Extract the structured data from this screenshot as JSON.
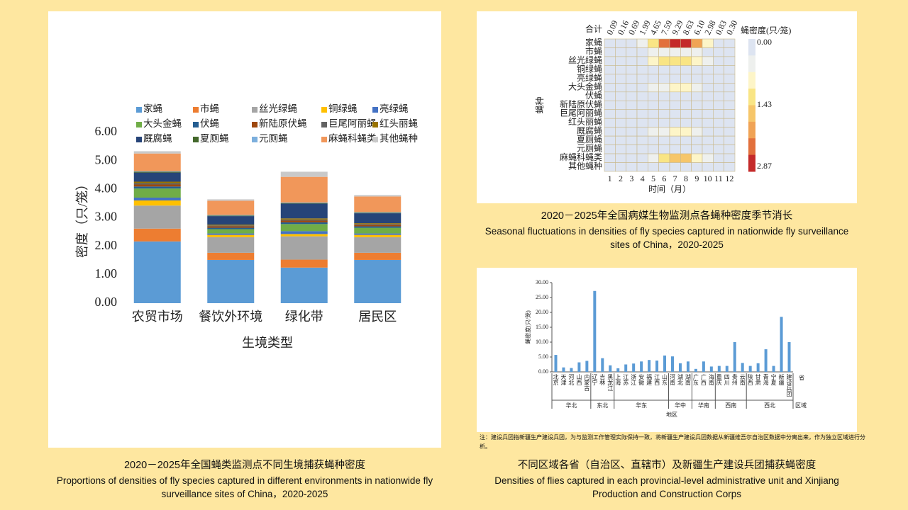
{
  "chart_data": [
    {
      "type": "bar",
      "stacked": true,
      "caption": {
        "zh": "2020－2025年全国蝇类监测点不同生境捕获蝇种密度",
        "en": "Proportions of densities of fly species captured in different environments in nationwide fly surveillance sites of China，2020-2025"
      },
      "xlabel": "生境类型",
      "ylabel": "密度（只/笼）",
      "categories": [
        "农贸市场",
        "餐饮外环境",
        "绿化带",
        "居民区"
      ],
      "ylim": [
        0,
        6
      ],
      "yticks": [
        {
          "value": 0,
          "label": "0.00"
        },
        {
          "value": 1,
          "label": "1.00"
        },
        {
          "value": 2,
          "label": "2.00"
        },
        {
          "value": 3,
          "label": "3.00"
        },
        {
          "value": 4,
          "label": "4.00"
        },
        {
          "value": 5,
          "label": "5.00"
        },
        {
          "value": 6,
          "label": "6.00"
        }
      ],
      "series": [
        {
          "name": "家蝇",
          "color": "#5b9bd5",
          "values": [
            2.17,
            1.52,
            1.25,
            1.52
          ]
        },
        {
          "name": "市蝇",
          "color": "#ed7d31",
          "values": [
            0.45,
            0.25,
            0.28,
            0.25
          ]
        },
        {
          "name": "丝光绿蝇",
          "color": "#a5a5a5",
          "values": [
            0.81,
            0.55,
            0.82,
            0.55
          ]
        },
        {
          "name": "铜绿蝇",
          "color": "#ffc000",
          "values": [
            0.18,
            0.08,
            0.08,
            0.08
          ]
        },
        {
          "name": "亮绿蝇",
          "color": "#4472c4",
          "values": [
            0.1,
            0.05,
            0.1,
            0.05
          ]
        },
        {
          "name": "大头金蝇",
          "color": "#70ad47",
          "values": [
            0.32,
            0.15,
            0.25,
            0.2
          ]
        },
        {
          "name": "伏蝇",
          "color": "#255e91",
          "values": [
            0.07,
            0.05,
            0.06,
            0.05
          ]
        },
        {
          "name": "新陆原伏蝇",
          "color": "#9e480e",
          "values": [
            0.07,
            0.05,
            0.06,
            0.05
          ]
        },
        {
          "name": "巨尾阿丽蝇",
          "color": "#636363",
          "values": [
            0.05,
            0.03,
            0.04,
            0.03
          ]
        },
        {
          "name": "红头丽蝇",
          "color": "#997300",
          "values": [
            0.05,
            0.03,
            0.04,
            0.03
          ]
        },
        {
          "name": "厩腐蝇",
          "color": "#264478",
          "values": [
            0.32,
            0.3,
            0.52,
            0.35
          ]
        },
        {
          "name": "夏厕蝇",
          "color": "#43682b",
          "values": [
            0.03,
            0.02,
            0.02,
            0.02
          ]
        },
        {
          "name": "元厕蝇",
          "color": "#7cafdd",
          "values": [
            0.02,
            0.02,
            0.02,
            0.02
          ]
        },
        {
          "name": "麻蝇科蝇类",
          "color": "#f1975a",
          "values": [
            0.62,
            0.5,
            0.9,
            0.55
          ]
        },
        {
          "name": "其他蝇种",
          "color": "#c9c9c9",
          "values": [
            0.08,
            0.05,
            0.18,
            0.05
          ]
        }
      ]
    },
    {
      "type": "heatmap",
      "caption": {
        "zh": "2020－2025年全国病媒生物监测点各蝇种密度季节消长",
        "en": "Seasonal fluctuations in densities of fly species captured  in nationwide fly surveillance sites of China，2020-2025"
      },
      "xlabel": "时间（月）",
      "ylabel": "蝇种",
      "colorbar_title": "蝇密度(只/笼)",
      "totals_title": "合计",
      "columns": [
        1,
        2,
        3,
        4,
        5,
        6,
        7,
        8,
        9,
        10,
        11,
        12
      ],
      "totals": [
        0.09,
        0.16,
        0.69,
        1.99,
        4.65,
        7.59,
        9.29,
        8.63,
        6.1,
        2.98,
        0.83,
        0.3
      ],
      "totals_labels": [
        "0.09",
        "0.16",
        "0.69",
        "1.99",
        "4.65",
        "7.59",
        "9.29",
        "8.63",
        "6.10",
        "2.98",
        "0.83",
        "0.30"
      ],
      "rows": [
        "家蝇",
        "市蝇",
        "丝光绿蝇",
        "铜绿蝇",
        "亮绿蝇",
        "大头金蝇",
        "伏蝇",
        "新陆原伏蝇",
        "巨尾阿丽蝇",
        "红头丽蝇",
        "厩腐蝇",
        "夏厕蝇",
        "元厕蝇",
        "麻蝇科蝇类",
        "其他蝇种"
      ],
      "values": [
        [
          0.02,
          0.04,
          0.2,
          0.6,
          1.4,
          2.4,
          2.87,
          2.7,
          1.9,
          0.8,
          0.2,
          0.06
        ],
        [
          0.01,
          0.02,
          0.05,
          0.15,
          0.4,
          0.6,
          0.7,
          0.65,
          0.5,
          0.25,
          0.06,
          0.02
        ],
        [
          0.01,
          0.02,
          0.1,
          0.3,
          0.8,
          1.1,
          1.3,
          1.2,
          0.9,
          0.4,
          0.1,
          0.03
        ],
        [
          0,
          0,
          0.02,
          0.05,
          0.15,
          0.25,
          0.3,
          0.28,
          0.2,
          0.08,
          0.02,
          0
        ],
        [
          0,
          0,
          0.02,
          0.05,
          0.1,
          0.2,
          0.25,
          0.2,
          0.15,
          0.06,
          0.02,
          0
        ],
        [
          0.01,
          0.01,
          0.05,
          0.2,
          0.5,
          0.7,
          0.8,
          0.75,
          0.6,
          0.3,
          0.08,
          0.02
        ],
        [
          0,
          0,
          0.03,
          0.08,
          0.1,
          0.1,
          0.1,
          0.1,
          0.1,
          0.08,
          0.03,
          0.01
        ],
        [
          0,
          0,
          0.02,
          0.05,
          0.1,
          0.1,
          0.1,
          0.1,
          0.08,
          0.05,
          0.02,
          0
        ],
        [
          0.01,
          0.01,
          0.03,
          0.05,
          0.05,
          0.03,
          0.02,
          0.02,
          0.03,
          0.05,
          0.03,
          0.01
        ],
        [
          0,
          0.01,
          0.02,
          0.05,
          0.06,
          0.04,
          0.03,
          0.03,
          0.04,
          0.05,
          0.02,
          0.01
        ],
        [
          0.01,
          0.02,
          0.05,
          0.15,
          0.4,
          0.7,
          0.9,
          0.85,
          0.6,
          0.3,
          0.08,
          0.03
        ],
        [
          0,
          0,
          0.02,
          0.05,
          0.05,
          0.04,
          0.03,
          0.03,
          0.03,
          0.03,
          0.01,
          0
        ],
        [
          0,
          0,
          0.01,
          0.03,
          0.04,
          0.04,
          0.04,
          0.04,
          0.03,
          0.02,
          0.01,
          0
        ],
        [
          0.01,
          0.02,
          0.08,
          0.15,
          0.4,
          1.2,
          1.7,
          1.5,
          0.85,
          0.4,
          0.1,
          0.03
        ],
        [
          0.01,
          0.01,
          0.02,
          0.03,
          0.05,
          0.1,
          0.2,
          0.15,
          0.1,
          0.05,
          0.02,
          0.01
        ]
      ],
      "zlim": [
        0,
        2.87
      ],
      "zticks": [
        {
          "value": 0,
          "label": "0.00"
        },
        {
          "value": 1.43,
          "label": "1.43"
        },
        {
          "value": 2.87,
          "label": "2.87"
        }
      ],
      "colors": [
        "#dde4f1",
        "#eef0ee",
        "#fdf5c8",
        "#f9e585",
        "#f6c66a",
        "#f0a355",
        "#e2703c",
        "#c42a2a"
      ]
    },
    {
      "type": "bar",
      "caption": {
        "zh": "不同区域各省（自治区、直辖市）及新疆生产建设兵团捕获蝇密度",
        "en": "Densities of flies captured in each provincial-level administrative unit and Xinjiang Production and Construction Corps"
      },
      "note": "注：建设兵团指新疆生产建设兵团，为与监测工作管理实际保持一致，将新疆生产建设兵团数据从新疆维吾尔自治区数据中分离出来，作为独立区域进行分析。",
      "xlabel": "地区",
      "ylabel": "蝇密度(只/笼)",
      "category_label": "省",
      "group_label": "区域",
      "color": "#5b9bd5",
      "groups": [
        {
          "name": "华北",
          "categories": [
            "北京",
            "天津",
            "河北",
            "山西",
            "内蒙古"
          ]
        },
        {
          "name": "东北",
          "categories": [
            "辽宁",
            "吉林",
            "黑龙江"
          ]
        },
        {
          "name": "华东",
          "categories": [
            "上海",
            "江苏",
            "浙江",
            "安徽",
            "福建",
            "江西",
            "山东"
          ]
        },
        {
          "name": "华中",
          "categories": [
            "河南",
            "湖北",
            "湖南"
          ]
        },
        {
          "name": "华南",
          "categories": [
            "广东",
            "广西",
            "海南"
          ]
        },
        {
          "name": "西南",
          "categories": [
            "重庆",
            "四川",
            "贵州",
            "云南"
          ]
        },
        {
          "name": "西北",
          "categories": [
            "陕西",
            "甘肃",
            "青海",
            "宁夏",
            "新疆",
            "建设兵团"
          ]
        }
      ],
      "values": [
        5.7,
        1.5,
        1.3,
        3.2,
        3.7,
        27.2,
        4.6,
        2.2,
        1.2,
        2.5,
        2.8,
        3.5,
        4.0,
        3.8,
        5.5,
        5.2,
        2.9,
        3.5,
        1.0,
        3.5,
        1.8,
        2.0,
        2.0,
        10.0,
        3.0,
        2.0,
        2.9,
        7.6,
        2.0,
        18.5,
        10.0
      ],
      "ylim": [
        0,
        30
      ],
      "yticks": [
        {
          "value": 0,
          "label": "0.00"
        },
        {
          "value": 5,
          "label": "5.00"
        },
        {
          "value": 10,
          "label": "10.00"
        },
        {
          "value": 15,
          "label": "15.00"
        },
        {
          "value": 20,
          "label": "20.00"
        },
        {
          "value": 25,
          "label": "25.00"
        },
        {
          "value": 30,
          "label": "30.00"
        }
      ]
    }
  ]
}
